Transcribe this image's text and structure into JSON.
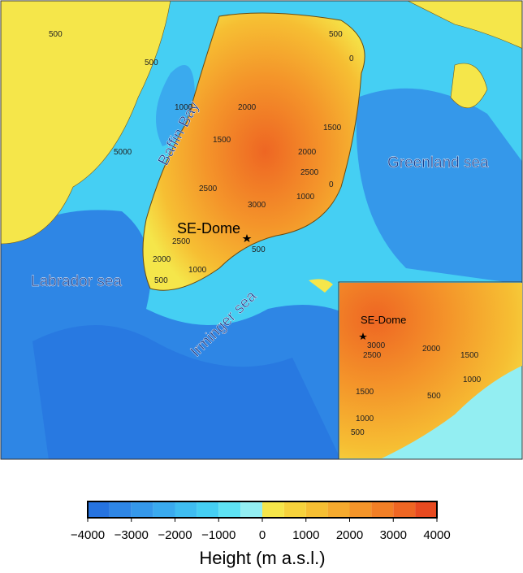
{
  "map": {
    "labels": [
      "Baffin Bay",
      "Greenland sea",
      "SE-Dome",
      "Labrador sea",
      "Irminger sea"
    ],
    "inset_label": "SE-Dome",
    "contour_labels": [
      "500",
      "500",
      "1000",
      "1500",
      "2000",
      "2500",
      "3000",
      "2000",
      "2500",
      "1500",
      "1000",
      "500",
      "0",
      "2000",
      "2500",
      "1000",
      "500",
      "5000",
      "500",
      "0"
    ],
    "inset_contour_labels": [
      "3000",
      "2500",
      "2000",
      "1500",
      "1000",
      "1500",
      "1000",
      "500",
      "500"
    ]
  },
  "colorbar": {
    "lim": [
      -4000,
      4000
    ],
    "levels": [
      -4000,
      -3500,
      -3000,
      -2500,
      -2000,
      -1500,
      -1000,
      -500,
      0,
      500,
      1000,
      1500,
      2000,
      2500,
      3000,
      3500,
      4000
    ],
    "colors": [
      "#2673e0",
      "#2e86e5",
      "#3598ea",
      "#3aaaee",
      "#3fbdf1",
      "#45cff3",
      "#5ee2f3",
      "#93eef2",
      "#f5e64a",
      "#f6d23c",
      "#f6bf33",
      "#f5aa2e",
      "#f4952a",
      "#f27f26",
      "#ee6623",
      "#e84a20"
    ],
    "ticks": [
      {
        "value": -4000,
        "label": "−4000"
      },
      {
        "value": -3000,
        "label": "−3000"
      },
      {
        "value": -2000,
        "label": "−2000"
      },
      {
        "value": -1000,
        "label": "−1000"
      },
      0,
      1000,
      2000,
      3000,
      4000
    ],
    "label": "Height (m a.s.l.)"
  }
}
